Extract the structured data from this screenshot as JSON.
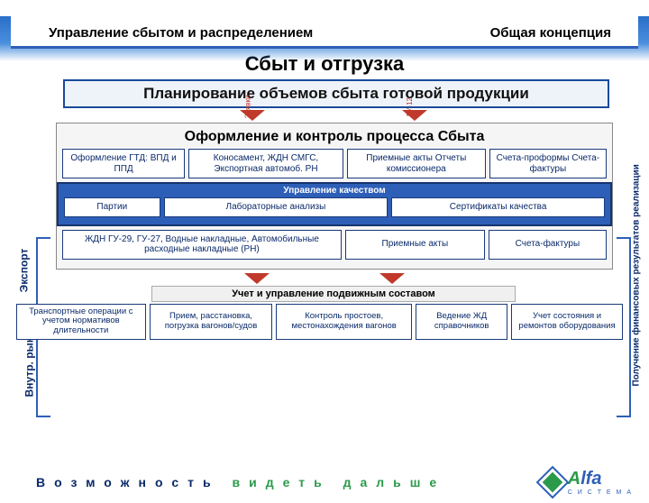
{
  "colors": {
    "header_border": "#2e5fb8",
    "accent_red": "#c0392b",
    "deep_blue": "#1a4a9a",
    "band_blue": "#2e5fb8",
    "text_blue": "#0a2a6a",
    "green": "#2a9a4a",
    "bg_gray": "#f5f5f5"
  },
  "header": {
    "left": "Управление сбытом и распределением",
    "right": "Общая концепция"
  },
  "main_title": "Сбыт и отгрузка",
  "planning": "Планирование объемов сбыта готовой продукции",
  "mid": {
    "title": "Оформление и контроль процесса Сбыта",
    "export_row": [
      "Оформление ГТД: ВПД и ППД",
      "Коносамент, ЖДН СМГС, Экспортная автомоб. РН",
      "Приемные акты Отчеты комиссионера",
      "Счета-проформы Счета-фактуры"
    ],
    "quality_title": "Управление качеством",
    "quality_row": [
      "Партии",
      "Лабораторные анализы",
      "Сертификаты качества"
    ],
    "domestic_row": [
      "ЖДН ГУ-29, ГУ-27, Водные накладные, Автомобильные расходные накладные (РН)",
      "Приемные акты",
      "Счета-фактуры"
    ]
  },
  "side": {
    "export": "Экспорт",
    "domestic": "Внутр. рынок",
    "right": "Получение финансовых результатов реализации"
  },
  "small_labels": {
    "a": "Заявки",
    "b": "ГУ-12"
  },
  "bottom": {
    "title": "Учет и управление подвижным составом",
    "cells": [
      "Транспортные операции с учетом нормативов длительности",
      "Прием, расстановка, погрузка вагонов/судов",
      "Контроль простоев, местонахождения вагонов",
      "Ведение ЖД справочников",
      "Учет состояния и ремонтов оборудования"
    ]
  },
  "slogan": {
    "blue": "Возможность ",
    "green": "видеть дальше"
  },
  "logo": {
    "name": "Alfa",
    "sub": "С И С Т Е М А"
  },
  "layout": {
    "export_widths": [
      "23%",
      "29%",
      "26%",
      "22%"
    ],
    "quality_widths": [
      "18%",
      "42%",
      "40%"
    ],
    "domestic_widths": [
      "52%",
      "26%",
      "22%"
    ],
    "bottom_widths": [
      "21%",
      "20%",
      "22%",
      "15%",
      "18%"
    ]
  }
}
